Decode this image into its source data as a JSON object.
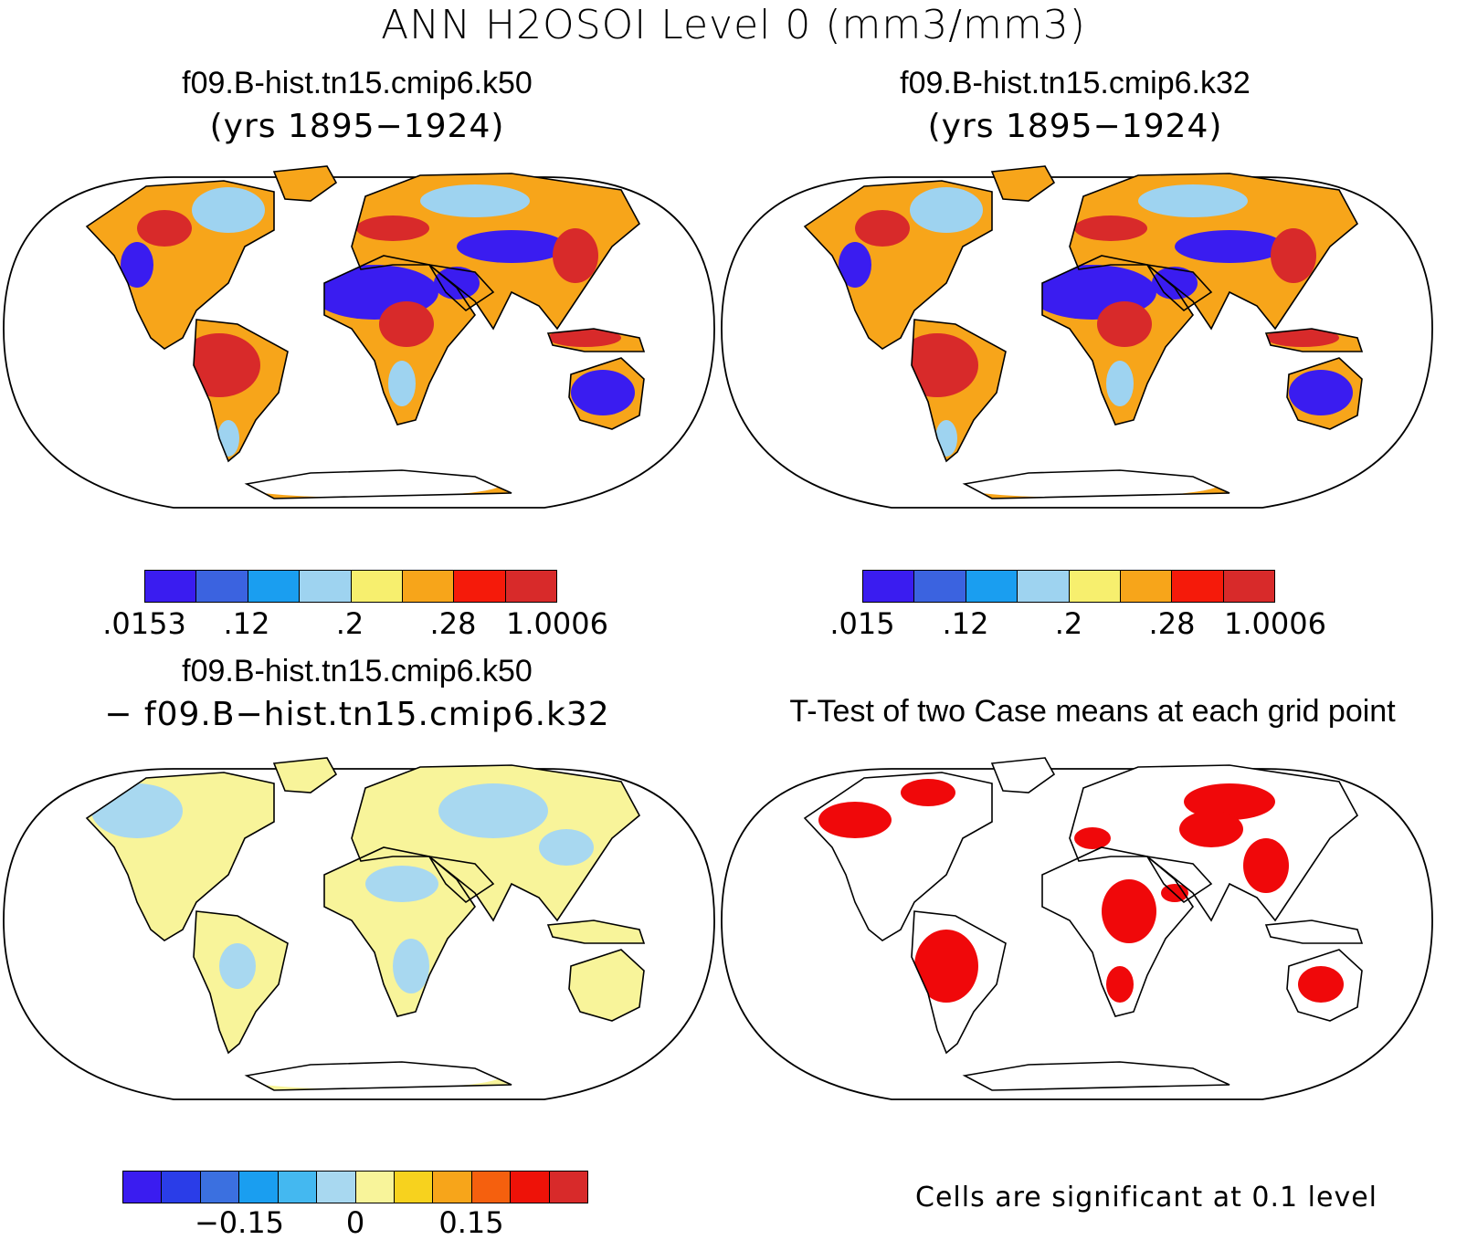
{
  "title": "ANN H2OSOI Level 0 (mm3/mm3)",
  "panels": [
    {
      "title": "f09.B-hist.tn15.cmip6.k50",
      "subtitle": "(yrs 1895−1924)"
    },
    {
      "title": "f09.B-hist.tn15.cmip6.k32",
      "subtitle": "(yrs 1895−1924)"
    },
    {
      "title": "f09.B-hist.tn15.cmip6.k50",
      "subtitle": "− f09.B−hist.tn15.cmip6.k32"
    },
    {
      "title": "T-Test of two Case means at each grid point",
      "subtitle": ""
    }
  ],
  "colorbars": [
    {
      "colors": [
        "#3a1cf0",
        "#3b63e0",
        "#1a9ef0",
        "#9ed3f0",
        "#f7ef6e",
        "#f7a51a",
        "#f51a0a",
        "#d82a2a"
      ],
      "labels": [
        ".0153",
        ".12",
        ".2",
        ".28",
        "1.0006"
      ]
    },
    {
      "colors": [
        "#3a1cf0",
        "#3b63e0",
        "#1a9ef0",
        "#9ed3f0",
        "#f7ef6e",
        "#f7a51a",
        "#f51a0a",
        "#d82a2a"
      ],
      "labels": [
        ".015",
        ".12",
        ".2",
        ".28",
        "1.0006"
      ]
    },
    {
      "colors": [
        "#3a1cf0",
        "#2a3de8",
        "#3b70e0",
        "#1a9ef0",
        "#44b8f0",
        "#a8d8f0",
        "#f8f49a",
        "#f7d21e",
        "#f7a51a",
        "#f5600e",
        "#ee1208",
        "#d82a2a"
      ],
      "labels": [
        "−0.15",
        "0",
        "0.15"
      ]
    }
  ],
  "ttest_note": "Cells are significant at 0.1 level",
  "map_colors": {
    "wet": "#d82a2a",
    "moist": "#f7a51a",
    "mid": "#9ed3f0",
    "dry": "#3a1cf0",
    "diffA": "#f8f49a",
    "diffB": "#a8d8f0",
    "sig": "#f0080a"
  }
}
